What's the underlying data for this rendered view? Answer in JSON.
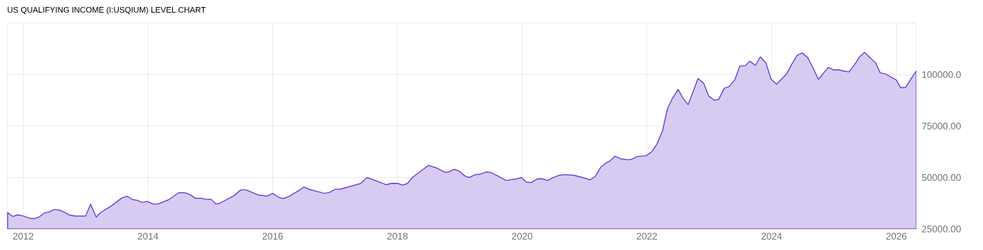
{
  "chart_data": {
    "type": "area",
    "title": "US QUALIFYING INCOME (I:USQIUM) LEVEL CHART",
    "color": "#6a3fd0",
    "x": [
      2011.75,
      2011.83,
      2011.91,
      2011.99,
      2012.11,
      2012.17,
      2012.25,
      2012.34,
      2012.42,
      2012.5,
      2012.59,
      2012.66,
      2012.75,
      2012.83,
      2013.0,
      2013.08,
      2013.17,
      2013.24,
      2013.41,
      2013.51,
      2013.58,
      2013.67,
      2013.75,
      2013.82,
      2013.91,
      2013.99,
      2014.08,
      2014.16,
      2014.33,
      2014.49,
      2014.59,
      2014.67,
      2014.76,
      2014.86,
      2014.93,
      2015.01,
      2015.09,
      2015.15,
      2015.38,
      2015.49,
      2015.57,
      2015.66,
      2015.76,
      2015.91,
      2016.0,
      2016.1,
      2016.17,
      2016.25,
      2016.34,
      2016.41,
      2016.5,
      2016.58,
      2016.7,
      2016.83,
      2016.92,
      2017.0,
      2017.09,
      2017.41,
      2017.51,
      2017.68,
      2017.82,
      2017.91,
      2018.01,
      2018.08,
      2018.16,
      2018.24,
      2018.36,
      2018.5,
      2018.64,
      2018.76,
      2018.82,
      2018.91,
      2018.98,
      2019.08,
      2019.15,
      2019.25,
      2019.32,
      2019.42,
      2019.49,
      2019.59,
      2019.74,
      2019.9,
      2019.99,
      2020.07,
      2020.15,
      2020.24,
      2020.32,
      2020.41,
      2020.49,
      2020.58,
      2020.67,
      2020.83,
      2020.98,
      2021.09,
      2021.17,
      2021.26,
      2021.34,
      2021.4,
      2021.49,
      2021.57,
      2021.67,
      2021.74,
      2021.84,
      2021.91,
      2021.99,
      2022.08,
      2022.16,
      2022.25,
      2022.33,
      2022.41,
      2022.5,
      2022.58,
      2022.66,
      2022.74,
      2022.82,
      2022.91,
      2022.99,
      2023.08,
      2023.15,
      2023.24,
      2023.32,
      2023.41,
      2023.49,
      2023.58,
      2023.65,
      2023.74,
      2023.82,
      2023.91,
      2023.99,
      2024.08,
      2024.16,
      2024.24,
      2024.33,
      2024.41,
      2024.49,
      2024.58,
      2024.67,
      2024.75,
      2024.82,
      2024.91,
      2024.99,
      2025.08,
      2025.16,
      2025.24,
      2025.33,
      2025.41,
      2025.49,
      2025.58,
      2025.67,
      2025.74,
      2025.83,
      2025.91,
      2026.0,
      2026.07,
      2026.15,
      2026.23,
      2026.32
    ],
    "values": [
      33000,
      31100,
      31900,
      31400,
      30200,
      30000,
      30800,
      32800,
      33400,
      34500,
      34100,
      33100,
      31700,
      31300,
      31300,
      37100,
      30800,
      33000,
      36200,
      38400,
      40100,
      40900,
      39300,
      39000,
      37900,
      38400,
      37100,
      37100,
      39200,
      42600,
      42600,
      41800,
      39900,
      39900,
      39400,
      39500,
      37100,
      37500,
      41200,
      44000,
      44000,
      42900,
      41600,
      41000,
      42300,
      40300,
      39800,
      40700,
      42300,
      43500,
      45400,
      44300,
      43300,
      42300,
      42900,
      44300,
      44400,
      47100,
      50000,
      48200,
      46500,
      47200,
      47100,
      46300,
      47100,
      50000,
      52800,
      55900,
      54500,
      52500,
      52700,
      54000,
      53300,
      50800,
      50000,
      51400,
      51600,
      52700,
      52500,
      51100,
      48600,
      49300,
      49900,
      47700,
      47600,
      49300,
      49400,
      48600,
      49900,
      51000,
      51400,
      51100,
      49900,
      48900,
      50500,
      55000,
      57000,
      57900,
      60400,
      59200,
      58700,
      58700,
      60100,
      60400,
      60600,
      62600,
      66200,
      72700,
      83500,
      88500,
      92800,
      88500,
      85400,
      91700,
      98100,
      95800,
      89600,
      87600,
      87900,
      93400,
      94200,
      97500,
      104100,
      104300,
      106500,
      104500,
      108600,
      105600,
      97900,
      95300,
      97900,
      100300,
      105400,
      109400,
      110500,
      108200,
      102900,
      97700,
      100300,
      103500,
      102300,
      102300,
      101700,
      101300,
      104800,
      108600,
      110800,
      108200,
      105600,
      100900,
      100300,
      98900,
      97300,
      93600,
      93800,
      97700,
      101700
    ],
    "xlim": [
      2011.74,
      2026.32
    ],
    "xticks": [
      2012,
      2014,
      2016,
      2018,
      2020,
      2022,
      2024,
      2026
    ],
    "ylim": [
      25000,
      125000
    ],
    "yticks": [
      {
        "value": 25000,
        "label": "25000.00"
      },
      {
        "value": 50000,
        "label": "50000.00"
      },
      {
        "value": 75000,
        "label": "75000.00"
      },
      {
        "value": 100000,
        "label": "100000.0"
      }
    ],
    "grid": true
  }
}
